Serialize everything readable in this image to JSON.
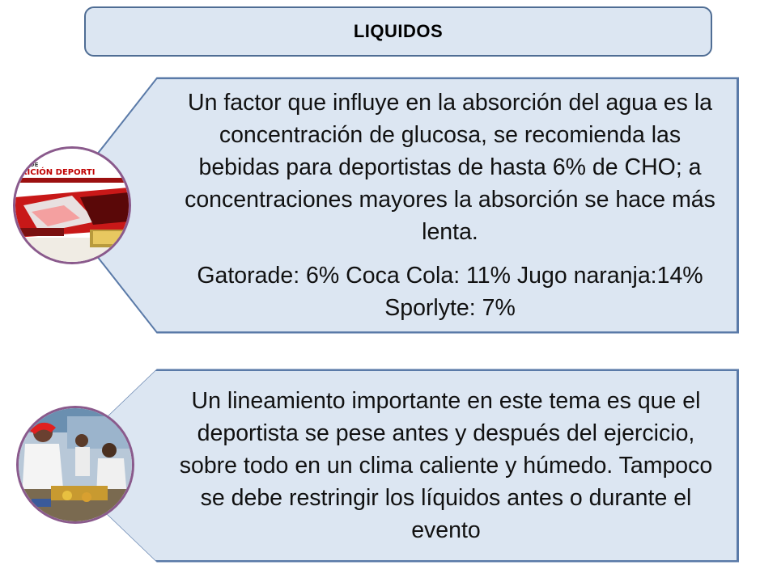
{
  "title": "LIQUIDOS",
  "cards": [
    {
      "paragraphs": [
        "Un factor que influye en la absorción del agua es la concentración de glucosa, se recomienda las bebidas para deportistas de hasta 6% de CHO; a concentraciones mayores  la absorción se hace más lenta.",
        "Gatorade: 6%    Coca Cola: 11%    Jugo naranja:14%   Sporlyte: 7%"
      ],
      "image": {
        "name": "nutricion-deportiva-book-cover",
        "banner_text": "UAL DE\nTRICIÓN DEPORTI"
      }
    },
    {
      "paragraphs": [
        "Un lineamiento importante en este tema es que el deportista se pese antes y después del ejercicio, sobre todo en un clima caliente y húmedo.  Tampoco se debe restringir los líquidos antes o durante el evento"
      ],
      "image": {
        "name": "athletes-drinking-photo"
      }
    }
  ],
  "colors": {
    "box_fill": "#dce6f2",
    "box_border": "#5a7aa8",
    "circle_border": "#8a5a8c"
  }
}
